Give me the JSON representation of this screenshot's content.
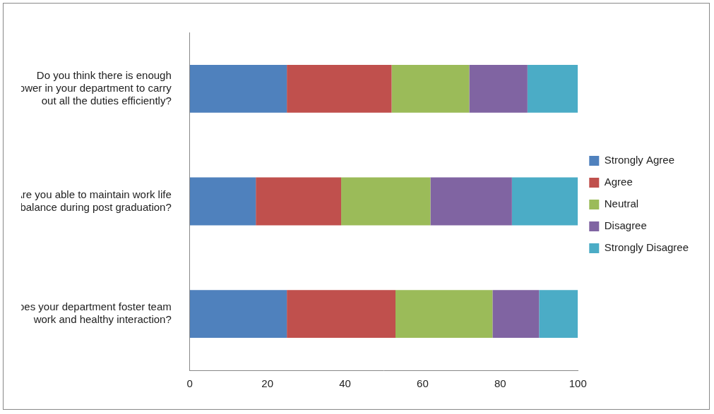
{
  "chart_data": {
    "type": "bar",
    "orientation": "horizontal",
    "stacked": true,
    "categories": [
      "Do you think there is enough manpower in your department to carry out all the duties efficiently?",
      "Are you able to maintain work life balance during post graduation?",
      "Does your department foster team work and healthy interaction?"
    ],
    "series": [
      {
        "name": "Strongly Agree",
        "color": "#4f81bd",
        "values": [
          25,
          17,
          25
        ]
      },
      {
        "name": "Agree",
        "color": "#c0504d",
        "values": [
          27,
          22,
          28
        ]
      },
      {
        "name": "Neutral",
        "color": "#9bbb59",
        "values": [
          20,
          23,
          25
        ]
      },
      {
        "name": "Disagree",
        "color": "#8064a2",
        "values": [
          15,
          21,
          12
        ]
      },
      {
        "name": "Strongly Disagree",
        "color": "#4bacc6",
        "values": [
          13,
          17,
          10
        ]
      }
    ],
    "xlim": [
      0,
      100
    ],
    "xticks": [
      0,
      20,
      40,
      60,
      80,
      100
    ],
    "grid": false,
    "legend": "right"
  }
}
